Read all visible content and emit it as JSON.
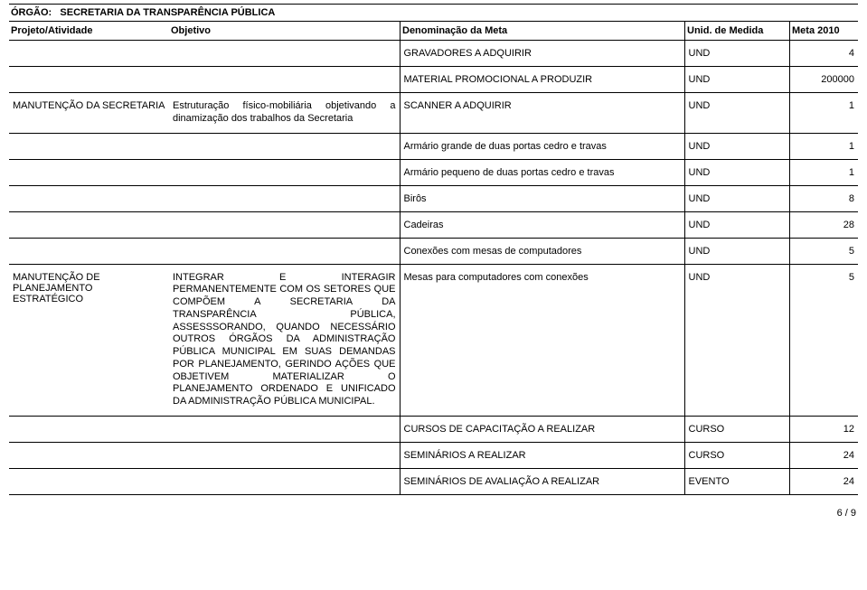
{
  "header": {
    "orgao_label": "ÓRGÃO:",
    "orgao_value": "SECRETARIA DA TRANSPARÊNCIA PÚBLICA",
    "col_proj": "Projeto/Atividade",
    "col_obj": "Objetivo",
    "col_meta": "Denominação da Meta",
    "col_unid": "Unid. de Medida",
    "col_val": "Meta 2010"
  },
  "rows": [
    {
      "proj": "",
      "obj": "",
      "meta": "GRAVADORES A ADQUIRIR",
      "unid": "UND",
      "val": "4"
    },
    {
      "proj": "",
      "obj": "",
      "meta": "MATERIAL PROMOCIONAL A PRODUZIR",
      "unid": "UND",
      "val": "200000"
    },
    {
      "proj": "MANUTENÇÃO DA SECRETARIA",
      "obj": "Estruturação físico-mobiliária objetivando a dinamização dos trabalhos da Secretaria",
      "meta": "SCANNER A ADQUIRIR",
      "unid": "UND",
      "val": "1"
    },
    {
      "proj": "",
      "obj": "",
      "meta": "Armário grande de duas portas cedro e travas",
      "unid": "UND",
      "val": "1"
    },
    {
      "proj": "",
      "obj": "",
      "meta": "Armário pequeno de duas portas cedro e travas",
      "unid": "UND",
      "val": "1"
    },
    {
      "proj": "",
      "obj": "",
      "meta": "Birôs",
      "unid": "UND",
      "val": "8"
    },
    {
      "proj": "",
      "obj": "",
      "meta": "Cadeiras",
      "unid": "UND",
      "val": "28"
    },
    {
      "proj": "",
      "obj": "",
      "meta": "Conexões com mesas de computadores",
      "unid": "UND",
      "val": "5"
    },
    {
      "proj": "MANUTENÇÃO DE PLANEJAMENTO ESTRATÉGICO",
      "obj": "INTEGRAR E INTERAGIR PERMANENTEMENTE COM OS SETORES QUE COMPÕEM A SECRETARIA DA TRANSPARÊNCIA PÚBLICA, ASSESSSORANDO, QUANDO NECESSÁRIO OUTROS ÓRGÃOS DA ADMINISTRAÇÃO PÚBLICA MUNICIPAL EM SUAS DEMANDAS POR PLANEJAMENTO, GERINDO AÇÕES QUE OBJETIVEM MATERIALIZAR O PLANEJAMENTO ORDENADO E UNIFICADO DA ADMINISTRAÇÃO PÚBLICA MUNICIPAL.",
      "meta": "Mesas para computadores com conexões",
      "unid": "UND",
      "val": "5"
    },
    {
      "proj": "",
      "obj": "",
      "meta": "CURSOS DE CAPACITAÇÃO A REALIZAR",
      "unid": "CURSO",
      "val": "12"
    },
    {
      "proj": "",
      "obj": "",
      "meta": "SEMINÁRIOS A REALIZAR",
      "unid": "CURSO",
      "val": "24"
    },
    {
      "proj": "",
      "obj": "",
      "meta": "SEMINÁRIOS DE AVALIAÇÃO A REALIZAR",
      "unid": "EVENTO",
      "val": "24"
    }
  ],
  "footer": {
    "page": "6 / 9"
  }
}
